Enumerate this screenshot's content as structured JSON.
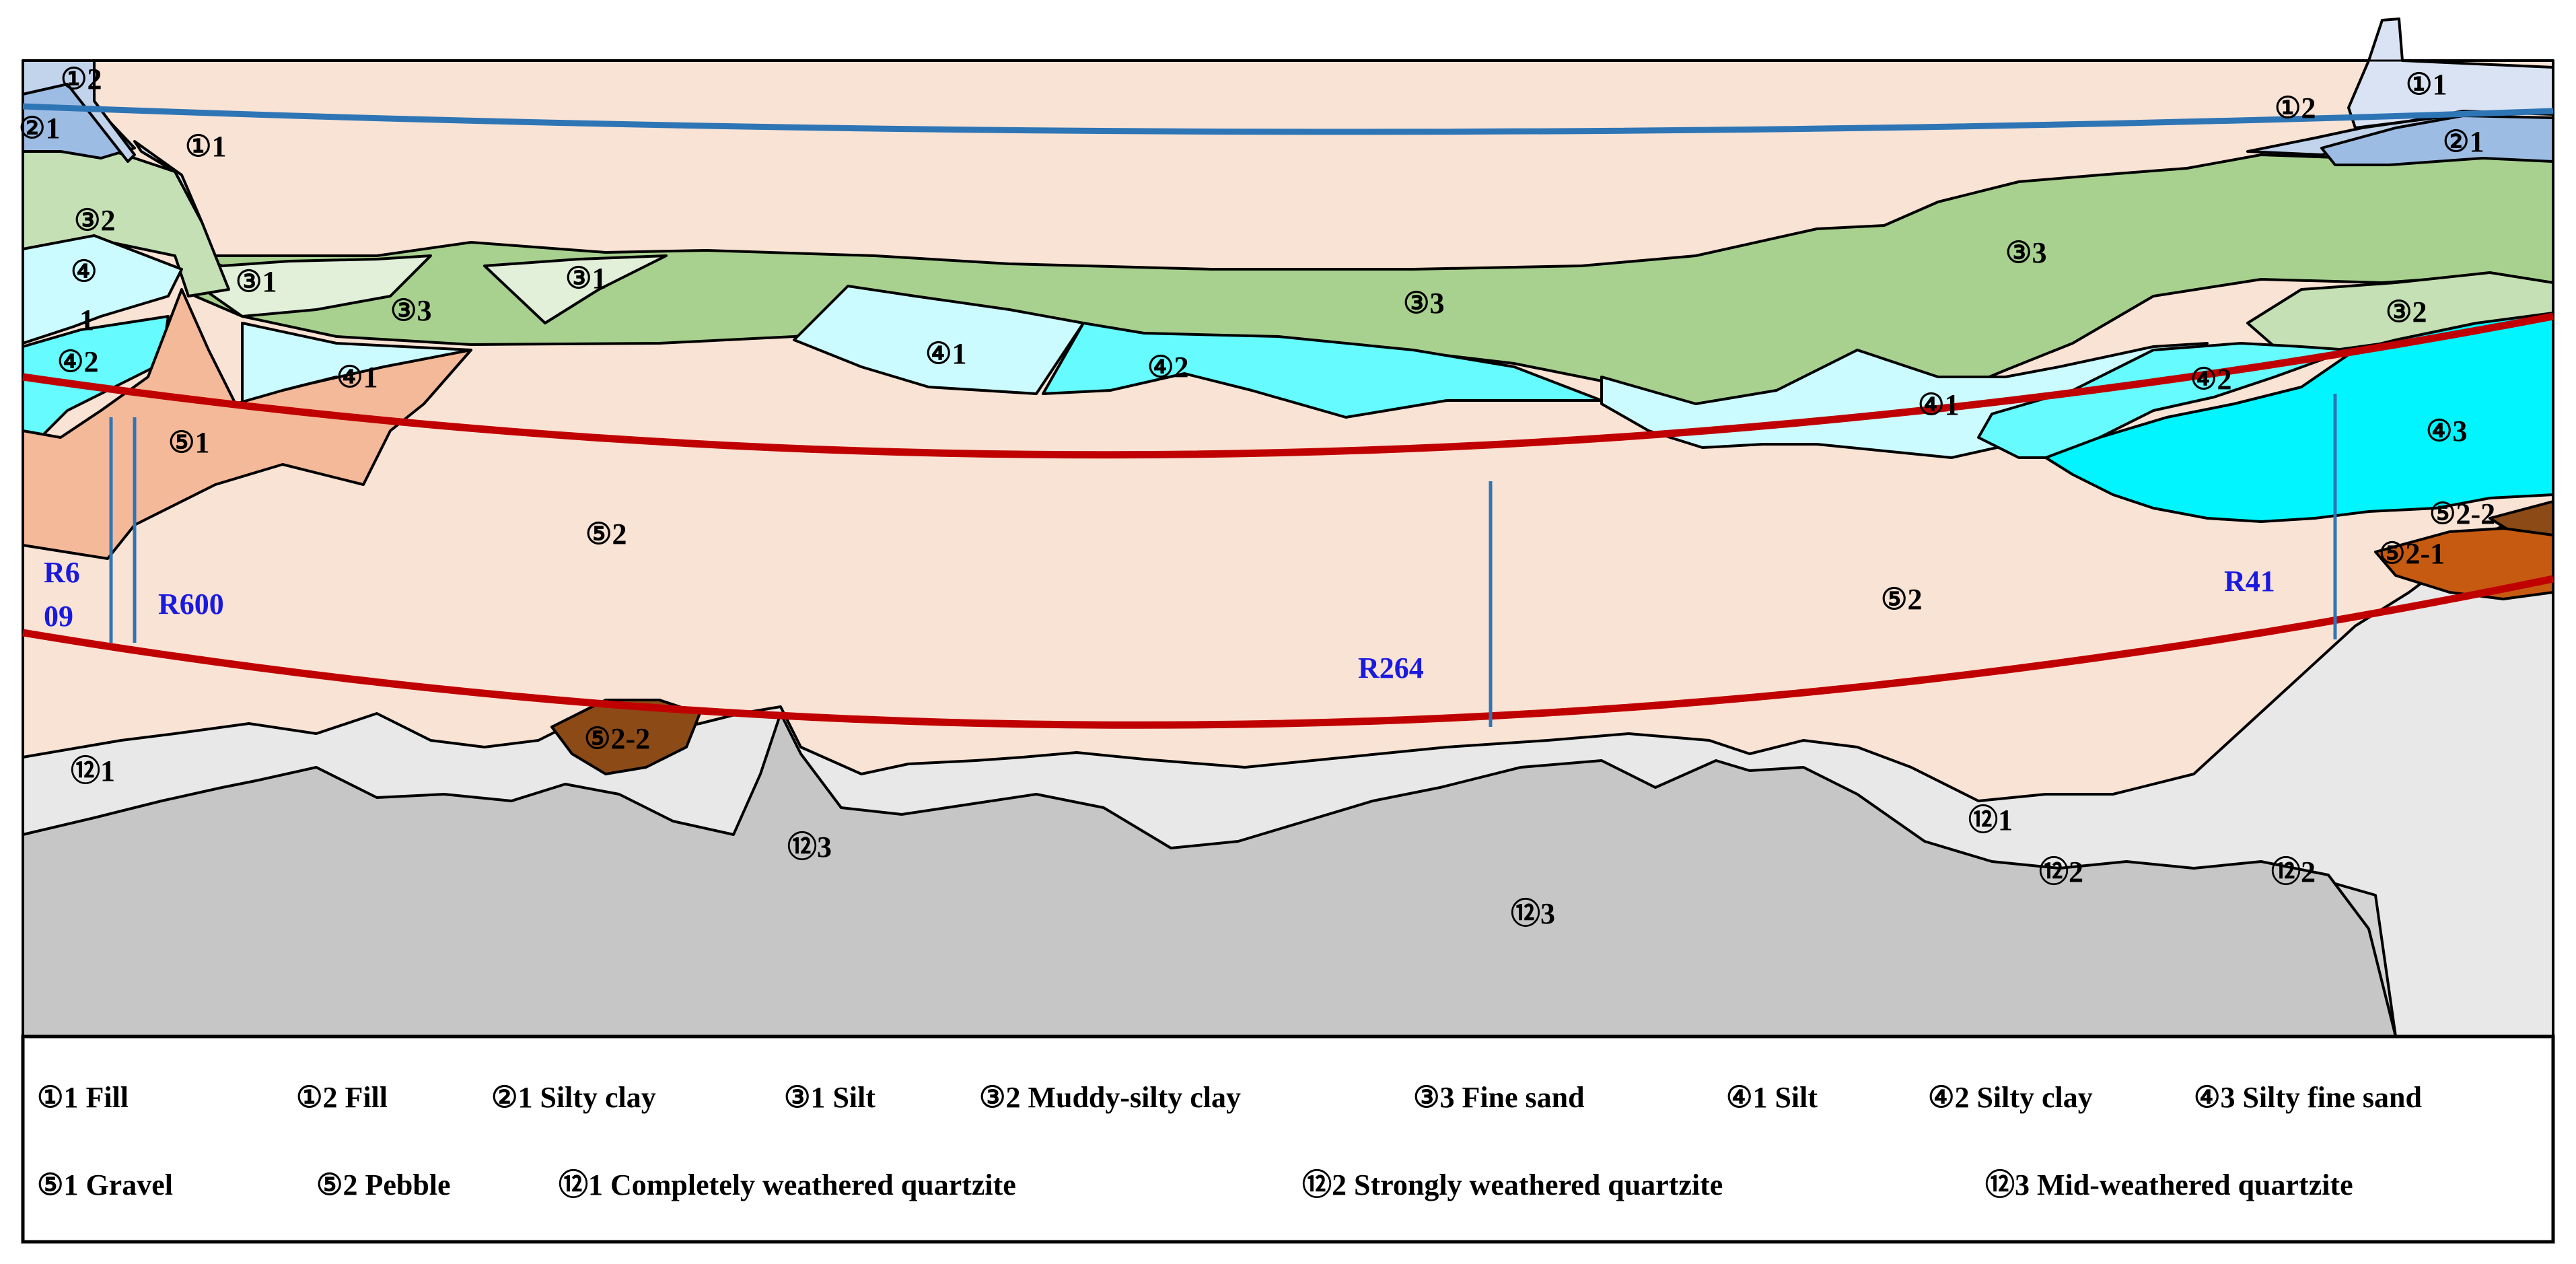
{
  "layers": [
    {
      "id": "pebble_5_2",
      "code": "⑤2",
      "name": "Pebble",
      "color": "#f9e3d5"
    },
    {
      "id": "quartzite_12_1",
      "code": "⑫1",
      "name": "Completely weathered quartzite",
      "color": "#e8e8e8"
    },
    {
      "id": "quartzite_12_2",
      "code": "⑫2",
      "name": "Strongly weathered quartzite",
      "color": "#d4d4d4"
    },
    {
      "id": "quartzite_12_3",
      "code": "⑫3",
      "name": "Mid-weathered quartzite",
      "color": "#c6c6c6"
    },
    {
      "id": "fine_sand_3_3",
      "code": "③3",
      "name": "Fine sand",
      "color": "#a8d18f"
    },
    {
      "id": "silt_3_1",
      "code": "③1",
      "name": "Silt",
      "color": "#e2efd9"
    },
    {
      "id": "muddy_silty_clay_3_2",
      "code": "③2",
      "name": "Muddy-silty clay",
      "color": "#c5e0b4"
    },
    {
      "id": "silt_4_1",
      "code": "④1",
      "name": "Silt",
      "color": "#ccfbff"
    },
    {
      "id": "silty_clay_4_2",
      "code": "④2",
      "name": "Silty clay",
      "color": "#66fbff"
    },
    {
      "id": "silty_fine_sand_4_3",
      "code": "④3",
      "name": "Silty fine sand",
      "color": "#00f5ff"
    },
    {
      "id": "gravel_5_1",
      "code": "⑤1",
      "name": "Gravel",
      "color": "#f4b999"
    },
    {
      "id": "fill_1_1",
      "code": "①1",
      "name": "Fill",
      "color": "#dae3f3"
    },
    {
      "id": "fill_1_2",
      "code": "①2",
      "name": "Fill",
      "color": "#c2d3ec"
    },
    {
      "id": "silty_clay_2_1",
      "code": "②1",
      "name": "Silty clay",
      "color": "#9dbce4"
    },
    {
      "id": "lens_5_2_1",
      "code": "⑤2-1",
      "name": "",
      "color": "#c65a11"
    },
    {
      "id": "lens_5_2_2",
      "code": "⑤2-2",
      "name": "",
      "color": "#8c4a16"
    }
  ],
  "section_labels": {
    "fill_left_top": "①2",
    "silty_clay_left": "②1",
    "fill_left_mid": "①1",
    "muddy_left": "③2",
    "silt4_left_a": "④",
    "silt4_left_b": "1",
    "silty_clay4_left": "④2",
    "silt3_left": "③1",
    "fine_sand_left": "③3",
    "silt3_mid": "③1",
    "silt4_left2": "④1",
    "gravel_left": "⑤1",
    "pebble_left": "⑤2",
    "fine_sand_mid": "③3",
    "silt4_mid": "④1",
    "silty_clay4_mid": "④2",
    "fine_sand_right": "③3",
    "muddy_right": "③2",
    "silt4_right": "④1",
    "silty_clay4_right": "④2",
    "silty_fine_sand_right": "④3",
    "lens_right_top": "⑤2-2",
    "lens_right": "⑤2-1",
    "pebble_right": "⑤2",
    "lens_left": "⑤2-2",
    "quartzite121_left": "⑫1",
    "quartzite123_peak": "⑫3",
    "quartzite123_main": "⑫3",
    "quartzite121_right": "⑫1",
    "quartzite122_a": "⑫2",
    "quartzite122_b": "⑫2",
    "fill_right_1": "①1",
    "fill_right_2": "①2",
    "silty_clay_right": "②1"
  },
  "boreholes": [
    {
      "id": "R609",
      "label_a": "R6",
      "label_b": "09"
    },
    {
      "id": "R600",
      "label": "R600"
    },
    {
      "id": "R264",
      "label": "R264"
    },
    {
      "id": "R41",
      "label": "R41"
    }
  ],
  "legend": {
    "row1": [
      {
        "code": "①1",
        "name": "Fill"
      },
      {
        "code": "①2",
        "name": "Fill"
      },
      {
        "code": "②1",
        "name": "Silty clay"
      },
      {
        "code": "③1",
        "name": "Silt"
      },
      {
        "code": "③2",
        "name": "Muddy-silty clay"
      },
      {
        "code": "③3",
        "name": "Fine sand"
      },
      {
        "code": "④1",
        "name": "Silt"
      },
      {
        "code": "④2",
        "name": "Silty clay"
      },
      {
        "code": "④3",
        "name": "Silty fine sand"
      }
    ],
    "row2": [
      {
        "code": "⑤1",
        "name": "Gravel"
      },
      {
        "code": "⑤2",
        "name": "Pebble"
      },
      {
        "code": "⑫1",
        "name": "Completely weathered quartzite"
      },
      {
        "code": "⑫2",
        "name": "Strongly weathered quartzite"
      },
      {
        "code": "⑫3",
        "name": "Mid-weathered quartzite"
      }
    ]
  },
  "colors": {
    "tunnel_outline": "#c00000",
    "water_line": "#2e75b6",
    "borehole_line": "#2e75b6",
    "borehole_label": "#1a1adf"
  }
}
